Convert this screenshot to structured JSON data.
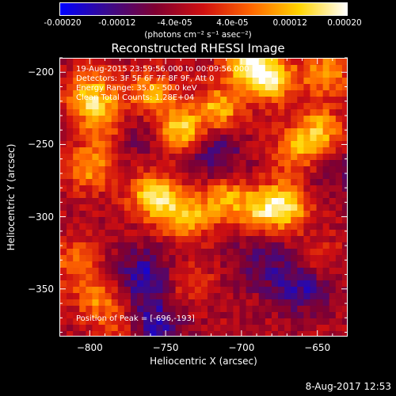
{
  "colorbar": {
    "tick_labels": [
      "-0.00020",
      "-0.00012",
      "-4.0e-05",
      "4.0e-05",
      "0.00012",
      "0.00020"
    ],
    "tick_values": [
      -0.0002,
      -0.00012,
      -4e-05,
      4e-05,
      0.00012,
      0.0002
    ],
    "range": [
      -0.0002,
      0.0002
    ],
    "unit_label": "(photons cm⁻² s⁻¹ asec⁻²)",
    "colors": [
      "#0000ff",
      "#3a0a8c",
      "#800030",
      "#d01010",
      "#ff6600",
      "#ffd400",
      "#ffffff"
    ]
  },
  "chart_data": {
    "type": "heatmap",
    "title": "Reconstructed RHESSI Image",
    "xlabel": "Heliocentric X (arcsec)",
    "ylabel": "Heliocentric Y (arcsec)",
    "xlim": [
      -820,
      -630
    ],
    "ylim": [
      -383,
      -190
    ],
    "x_ticks": [
      -800,
      -750,
      -700,
      -650
    ],
    "y_ticks": [
      -200,
      -250,
      -300,
      -350
    ],
    "x_tick_labels": [
      "−800",
      "−750",
      "−700",
      "−650"
    ],
    "y_tick_labels": [
      "−200",
      "−250",
      "−300",
      "−350"
    ],
    "annotations": [
      "19-Aug-2015 23:59:56.000 to 00:09:56.000",
      "Detectors: 3F 5F 6F 7F 8F 9F, Att 0",
      "Energy Range: 35.0 - 50.0 keV",
      "Clean     Total Counts: 1.28E+04"
    ],
    "peak_label": "Position of Peak = [-696,-193]",
    "peak": [
      -696,
      -193
    ],
    "bright_sources": [
      {
        "x": -800,
        "y": -215,
        "v": 0.00017
      },
      {
        "x": -790,
        "y": -235,
        "v": 0.00012
      },
      {
        "x": -760,
        "y": -215,
        "v": 0.00014
      },
      {
        "x": -740,
        "y": -240,
        "v": 0.00019
      },
      {
        "x": -715,
        "y": -225,
        "v": 0.00015
      },
      {
        "x": -696,
        "y": -193,
        "v": 0.0002
      },
      {
        "x": -680,
        "y": -205,
        "v": 0.00017
      },
      {
        "x": -645,
        "y": -200,
        "v": 0.00013
      },
      {
        "x": -650,
        "y": -240,
        "v": 0.00015
      },
      {
        "x": -665,
        "y": -255,
        "v": 0.00011
      },
      {
        "x": -800,
        "y": -265,
        "v": 0.00013
      },
      {
        "x": -758,
        "y": -285,
        "v": 0.00019
      },
      {
        "x": -738,
        "y": -300,
        "v": 0.00016
      },
      {
        "x": -712,
        "y": -287,
        "v": 0.00013
      },
      {
        "x": -672,
        "y": -292,
        "v": 0.00019
      },
      {
        "x": -690,
        "y": -295,
        "v": 0.00012
      },
      {
        "x": -810,
        "y": -330,
        "v": 0.0001
      },
      {
        "x": -795,
        "y": -355,
        "v": 0.00011
      },
      {
        "x": -780,
        "y": -375,
        "v": 9e-05
      },
      {
        "x": -650,
        "y": -330,
        "v": 8e-05
      },
      {
        "x": -735,
        "y": -345,
        "v": 7e-05
      }
    ],
    "dark_sources": [
      {
        "x": -720,
        "y": -255,
        "v": -0.0001
      },
      {
        "x": -765,
        "y": -340,
        "v": -0.00011
      },
      {
        "x": -760,
        "y": -375,
        "v": -0.00012
      },
      {
        "x": -660,
        "y": -345,
        "v": -0.00012
      },
      {
        "x": -690,
        "y": -330,
        "v": -7e-05
      },
      {
        "x": -770,
        "y": -240,
        "v": -6e-05
      },
      {
        "x": -640,
        "y": -270,
        "v": -5e-05
      }
    ]
  },
  "timestamp": "8-Aug-2017 12:53"
}
